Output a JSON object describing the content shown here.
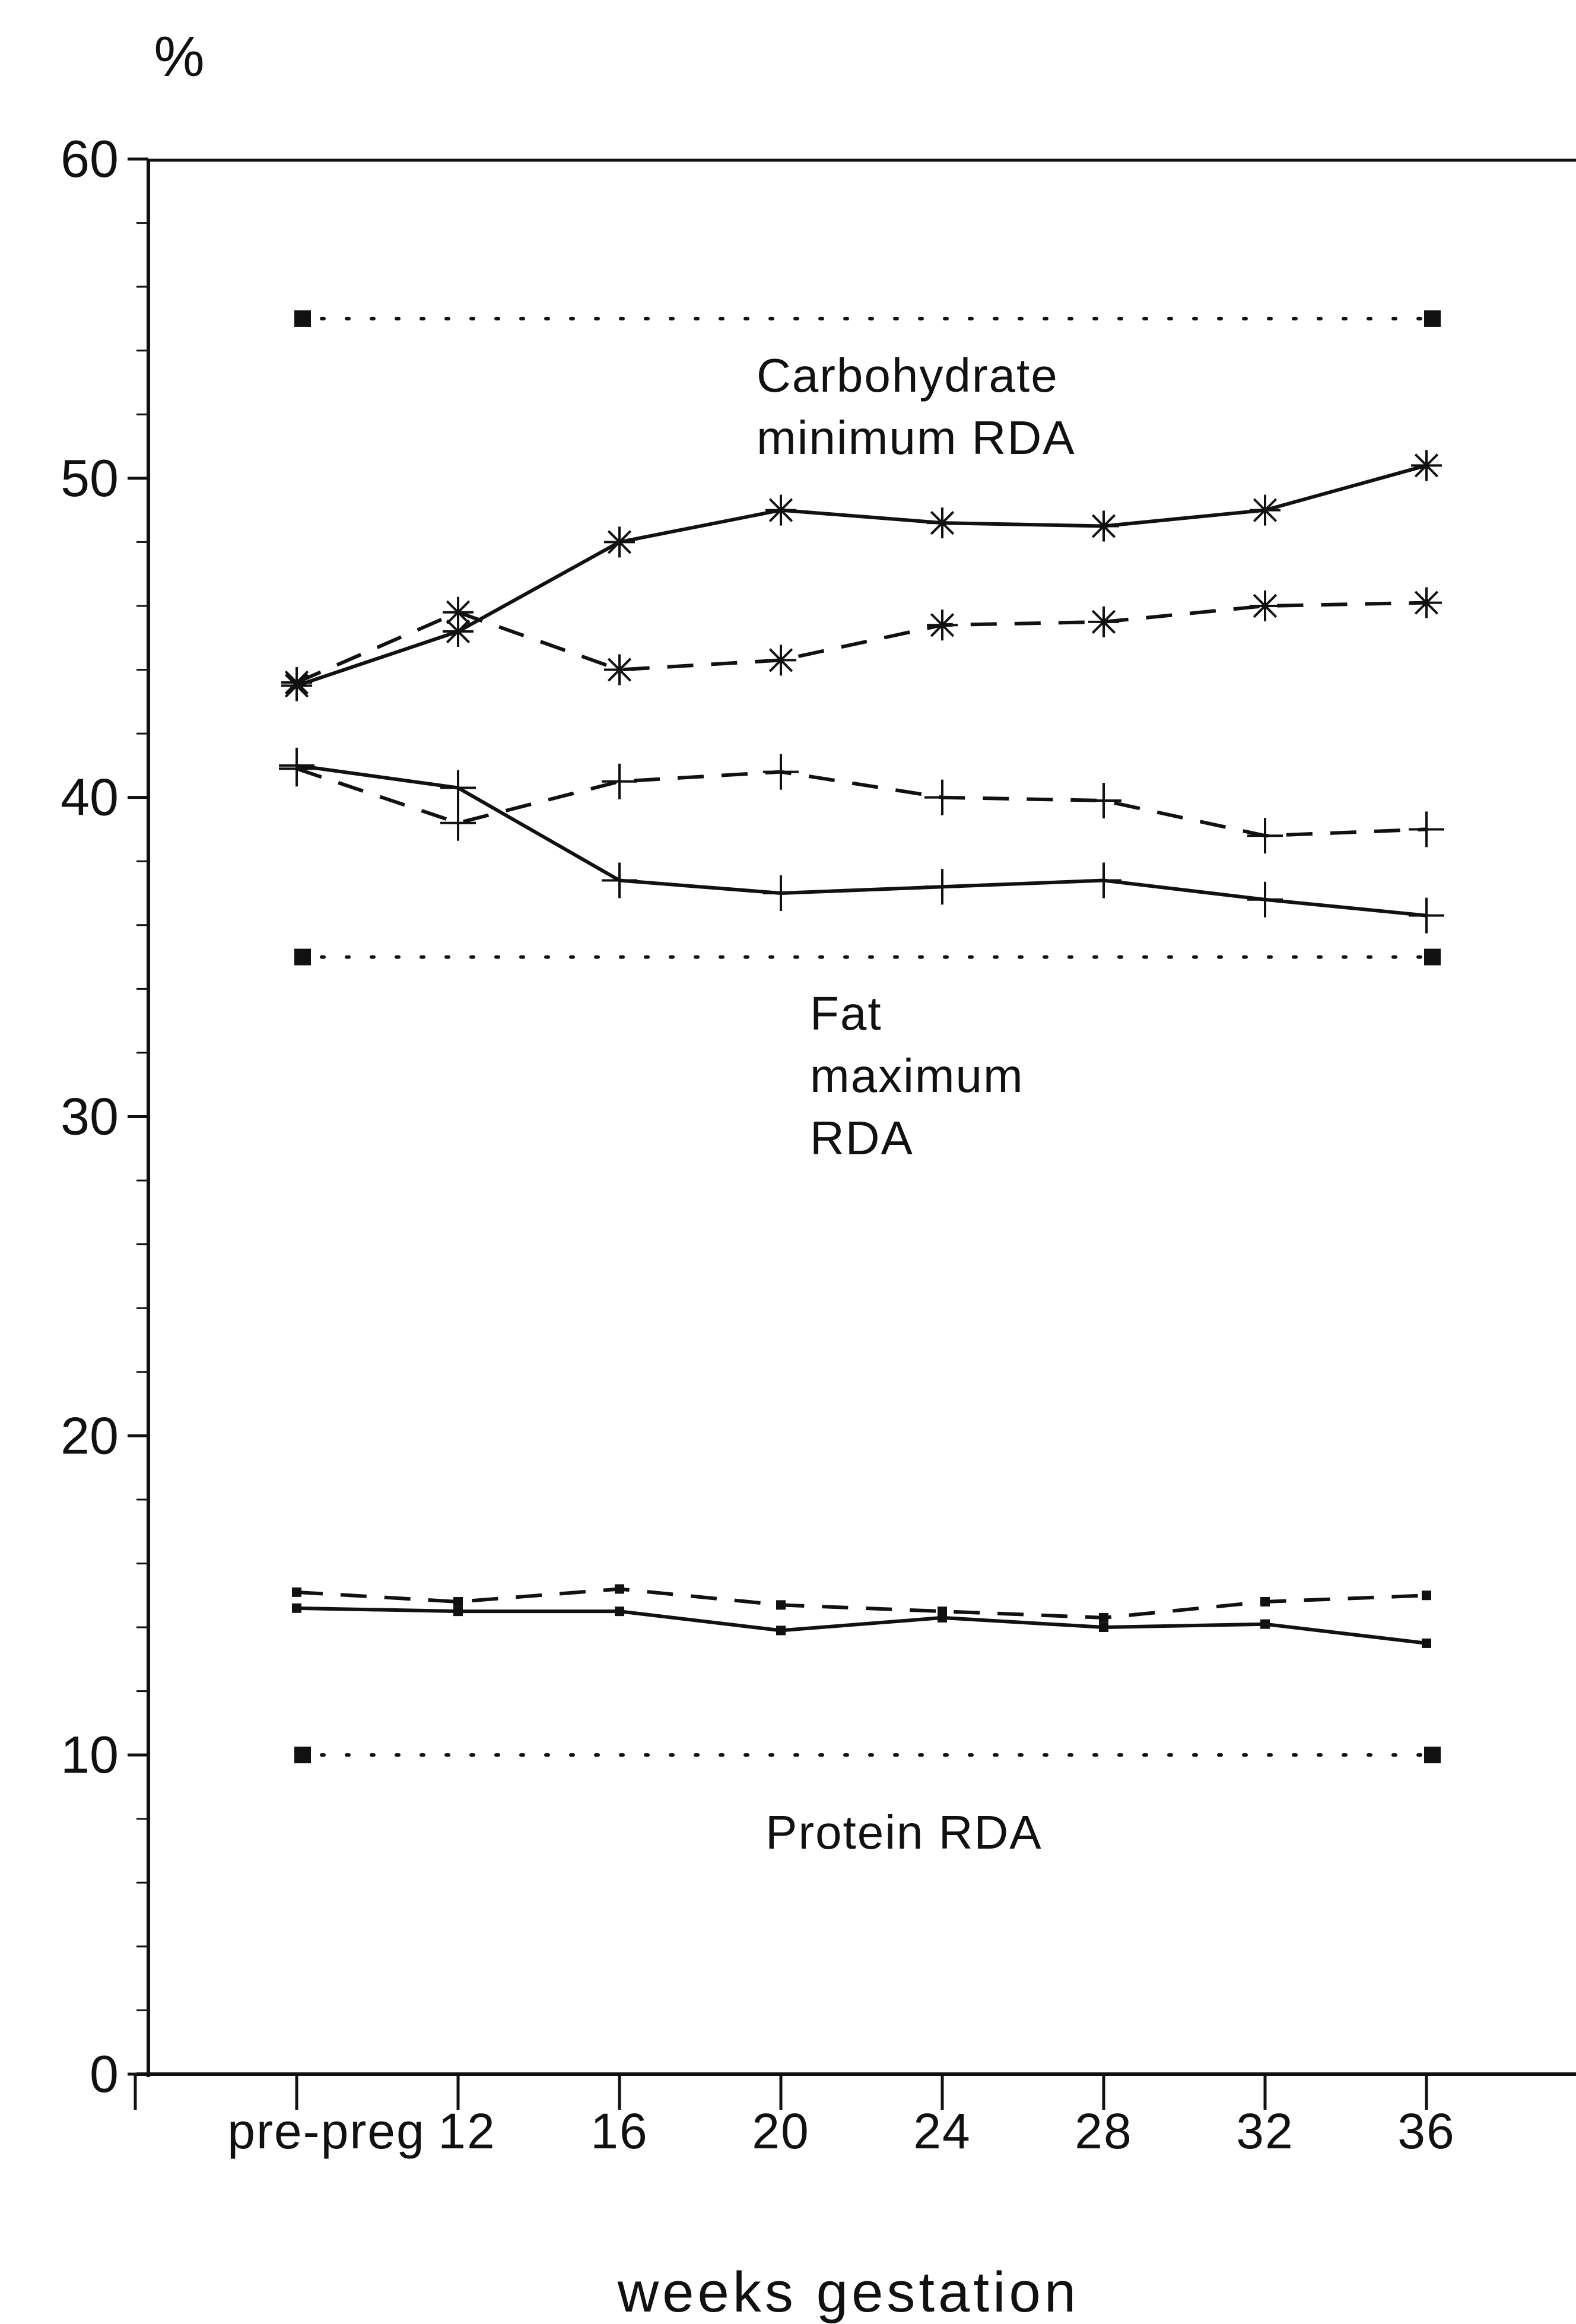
{
  "chart_data": {
    "type": "line",
    "ylabel": "%",
    "xlabel": "weeks gestation",
    "ylim": [
      0,
      60
    ],
    "yticks": [
      0,
      10,
      20,
      30,
      40,
      50,
      60
    ],
    "categories": [
      "pre-preg",
      "12",
      "16",
      "20",
      "24",
      "28",
      "32",
      "36"
    ],
    "grid": false,
    "series": [
      {
        "marker": "asterisk",
        "dash": "solid",
        "values": [
          43.5,
          45.2,
          48.0,
          49.0,
          48.6,
          48.5,
          49.0,
          50.4
        ]
      },
      {
        "marker": "asterisk",
        "dash": "dashed",
        "values": [
          43.6,
          45.8,
          44.0,
          44.3,
          45.4,
          45.5,
          46.0,
          46.1
        ]
      },
      {
        "marker": "plus",
        "dash": "solid",
        "values": [
          41.0,
          40.3,
          37.4,
          37.0,
          37.2,
          37.4,
          36.8,
          36.3
        ]
      },
      {
        "marker": "plus",
        "dash": "dashed",
        "values": [
          40.9,
          39.2,
          40.5,
          40.8,
          40.0,
          39.9,
          38.8,
          39.0
        ]
      },
      {
        "marker": "square",
        "dash": "solid",
        "values": [
          14.6,
          14.5,
          14.5,
          13.9,
          14.3,
          14.0,
          14.1,
          13.5
        ]
      },
      {
        "marker": "square",
        "dash": "dashed",
        "values": [
          15.1,
          14.8,
          15.2,
          14.7,
          14.5,
          14.3,
          14.8,
          15.0
        ]
      }
    ],
    "reference_lines": [
      {
        "label_lines": [
          "Carbohydrate",
          "minimum RDA"
        ],
        "value": 55
      },
      {
        "label_lines": [
          "Fat",
          "maximum",
          "RDA"
        ],
        "value": 35
      },
      {
        "label_lines": [
          "Protein RDA"
        ],
        "value": 10
      }
    ]
  },
  "colors": {
    "ink": "#111111",
    "background": "#ffffff"
  }
}
